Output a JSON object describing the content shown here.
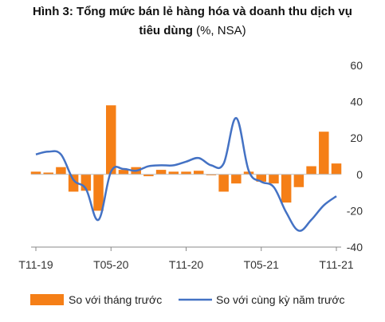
{
  "title": {
    "bold_part": "Hình 3: Tổng mức bán lẻ hàng hóa và doanh thu dịch vụ",
    "line2_bold": "tiêu dùng",
    "line2_normal": " (%, NSA)"
  },
  "colors": {
    "bar": "#F57F17",
    "line": "#4472C4",
    "axis": "#888888"
  },
  "chart_data": {
    "type": "bar+line",
    "ylim": [
      -40,
      60
    ],
    "yticks": [
      -40,
      -20,
      0,
      20,
      40,
      60
    ],
    "xtick_labels": [
      "T11-19",
      "T05-20",
      "T11-20",
      "T05-21",
      "T11-21"
    ],
    "xtick_index": [
      0,
      6,
      12,
      18,
      24
    ],
    "categories": [
      "T11-19",
      "T12-19",
      "T01-20",
      "T02-20",
      "T03-20",
      "T04-20",
      "T05-20",
      "T06-20",
      "T07-20",
      "T08-20",
      "T09-20",
      "T10-20",
      "T11-20",
      "T12-20",
      "T01-21",
      "T02-21",
      "T03-21",
      "T04-21",
      "T05-21",
      "T06-21",
      "T07-21",
      "T08-21",
      "T09-21",
      "T10-21",
      "T11-21"
    ],
    "series": [
      {
        "name": "So với tháng trước",
        "kind": "bar",
        "values": [
          1.5,
          1,
          4,
          -9.5,
          -9,
          -20,
          38,
          2.5,
          4,
          -1,
          2.5,
          1.5,
          1.5,
          2,
          -0.5,
          -9.5,
          -5,
          1.5,
          -4,
          -5,
          -15.5,
          -7,
          4.5,
          23.5,
          6
        ]
      },
      {
        "name": "So với cùng kỳ năm trước",
        "kind": "line",
        "values": [
          11,
          12.5,
          11,
          -3,
          -8,
          -25,
          1.5,
          3,
          2,
          4.5,
          5,
          5,
          7,
          9,
          5,
          6,
          31,
          2,
          -4,
          -7,
          -21,
          -31,
          -25,
          -17,
          -12
        ]
      }
    ],
    "legend_position": "bottom"
  }
}
